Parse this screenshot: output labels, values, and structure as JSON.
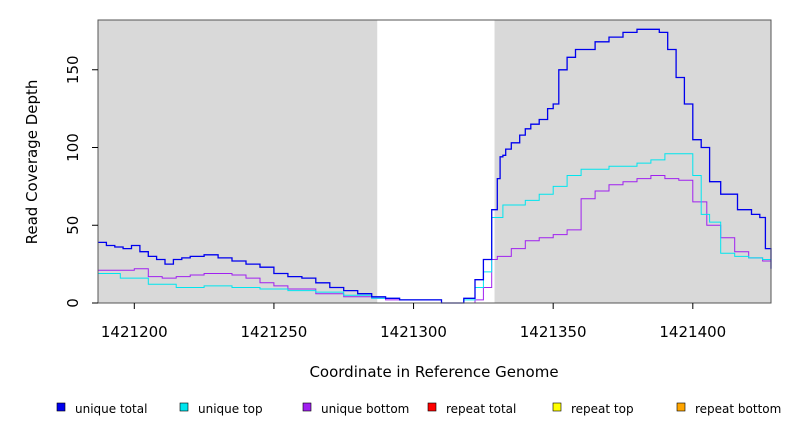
{
  "chart_data": {
    "type": "line",
    "xlabel": "Coordinate in Reference Genome",
    "ylabel": "Read Coverage Depth",
    "xlim": [
      1421187,
      1421428
    ],
    "ylim": [
      0,
      182
    ],
    "x_ticks": [
      1421200,
      1421250,
      1421300,
      1421350,
      1421400
    ],
    "x_tick_labels": [
      "1421200",
      "1421250",
      "1421300",
      "1421350",
      "1421400"
    ],
    "y_ticks": [
      0,
      50,
      100,
      150
    ],
    "y_tick_labels": [
      "0",
      "50",
      "100",
      "150"
    ],
    "shaded_regions": [
      [
        1421187,
        1421287
      ],
      [
        1421329,
        1421428
      ]
    ],
    "shade_color": "#d9d9d9",
    "legend_position": "bottom",
    "series": [
      {
        "name": "unique total",
        "color": "#0000ee",
        "x": [
          1421187,
          1421190,
          1421193,
          1421196,
          1421199,
          1421202,
          1421205,
          1421208,
          1421211,
          1421214,
          1421217,
          1421220,
          1421225,
          1421230,
          1421235,
          1421240,
          1421245,
          1421250,
          1421255,
          1421260,
          1421265,
          1421270,
          1421275,
          1421280,
          1421285,
          1421290,
          1421295,
          1421300,
          1421310,
          1421315,
          1421318,
          1421322,
          1421325,
          1421328,
          1421330,
          1421331,
          1421332,
          1421333,
          1421335,
          1421338,
          1421340,
          1421342,
          1421345,
          1421348,
          1421350,
          1421352,
          1421355,
          1421358,
          1421361,
          1421365,
          1421370,
          1421375,
          1421380,
          1421385,
          1421388,
          1421391,
          1421394,
          1421397,
          1421400,
          1421403,
          1421406,
          1421410,
          1421416,
          1421421,
          1421424,
          1421426,
          1421428
        ],
        "y": [
          39,
          37,
          36,
          35,
          37,
          33,
          30,
          28,
          25,
          28,
          29,
          30,
          31,
          29,
          27,
          25,
          23,
          19,
          17,
          16,
          13,
          10,
          8,
          6,
          4,
          3,
          2,
          2,
          0,
          0,
          3,
          15,
          28,
          60,
          80,
          94,
          95,
          99,
          103,
          108,
          112,
          115,
          118,
          125,
          128,
          150,
          158,
          163,
          163,
          168,
          171,
          174,
          176,
          176,
          174,
          163,
          145,
          128,
          105,
          100,
          78,
          70,
          60,
          57,
          55,
          35,
          22
        ]
      },
      {
        "name": "unique top",
        "color": "#00e5ee",
        "x": [
          1421187,
          1421195,
          1421205,
          1421215,
          1421225,
          1421235,
          1421245,
          1421255,
          1421265,
          1421275,
          1421285,
          1421290,
          1421295,
          1421300,
          1421310,
          1421315,
          1421318,
          1421322,
          1421325,
          1421328,
          1421332,
          1421340,
          1421345,
          1421350,
          1421355,
          1421360,
          1421370,
          1421380,
          1421385,
          1421390,
          1421395,
          1421400,
          1421403,
          1421406,
          1421410,
          1421415,
          1421420,
          1421425,
          1421428
        ],
        "y": [
          19,
          16,
          12,
          10,
          11,
          10,
          9,
          8,
          7,
          5,
          3,
          3,
          2,
          2,
          0,
          0,
          2,
          10,
          20,
          55,
          63,
          66,
          70,
          75,
          82,
          86,
          88,
          90,
          92,
          96,
          96,
          82,
          57,
          52,
          32,
          30,
          29,
          28,
          22
        ]
      },
      {
        "name": "unique bottom",
        "color": "#a020f0",
        "x": [
          1421187,
          1421195,
          1421200,
          1421205,
          1421210,
          1421215,
          1421220,
          1421225,
          1421230,
          1421235,
          1421240,
          1421245,
          1421250,
          1421255,
          1421265,
          1421275,
          1421285,
          1421290,
          1421300,
          1421310,
          1421322,
          1421325,
          1421328,
          1421330,
          1421335,
          1421340,
          1421345,
          1421350,
          1421355,
          1421360,
          1421365,
          1421370,
          1421375,
          1421380,
          1421385,
          1421390,
          1421395,
          1421400,
          1421405,
          1421410,
          1421415,
          1421420,
          1421425,
          1421428
        ],
        "y": [
          21,
          21,
          22,
          17,
          16,
          17,
          18,
          19,
          19,
          18,
          16,
          13,
          11,
          9,
          6,
          4,
          3,
          2,
          2,
          0,
          2,
          10,
          28,
          30,
          35,
          40,
          42,
          44,
          47,
          67,
          72,
          76,
          78,
          80,
          82,
          80,
          79,
          65,
          50,
          42,
          33,
          29,
          27,
          5
        ]
      },
      {
        "name": "repeat total",
        "color": "#ff0000",
        "x": [
          1421187,
          1421428
        ],
        "y": [
          0,
          0
        ]
      },
      {
        "name": "repeat top",
        "color": "#ffff00",
        "x": [
          1421187,
          1421428
        ],
        "y": [
          0,
          0
        ]
      },
      {
        "name": "repeat bottom",
        "color": "#ffa500",
        "x": [
          1421187,
          1421428
        ],
        "y": [
          0,
          0
        ]
      }
    ]
  }
}
